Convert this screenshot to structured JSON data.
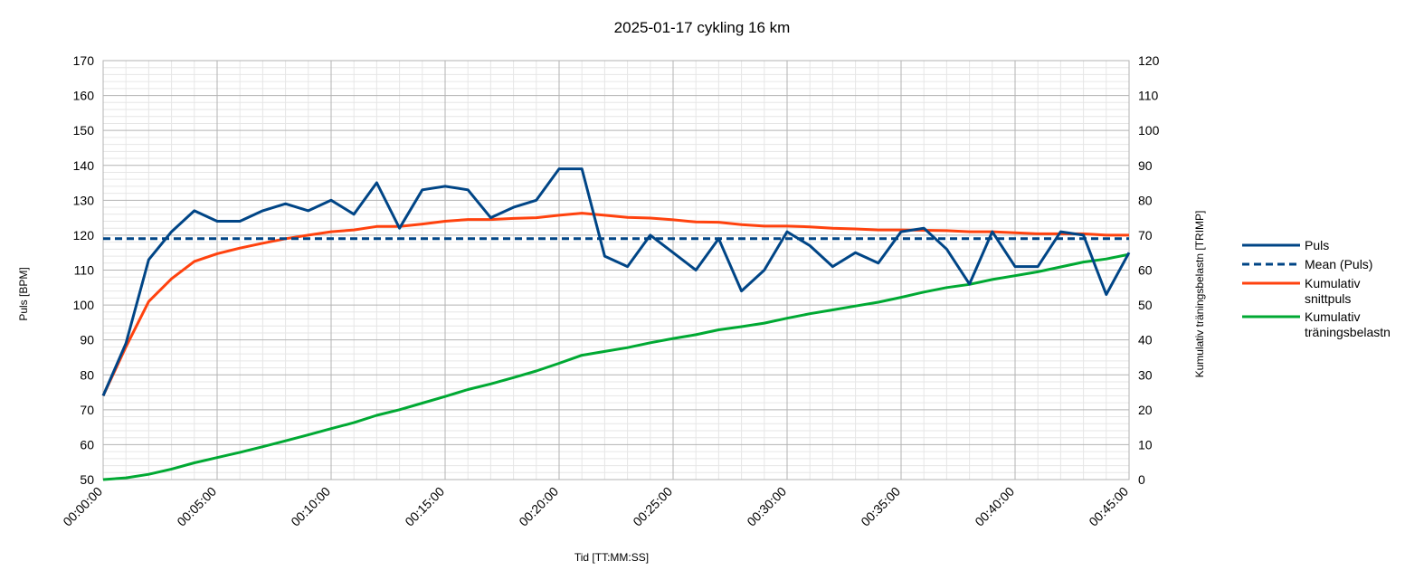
{
  "chart_data": {
    "type": "line",
    "title": "2025-01-17 cykling 16 km",
    "xlabel": "Tid [TT:MM:SS]",
    "ylabel": "Puls [BPM]",
    "y2label": "Kumulativ träningsbelastn [TRIMP]",
    "x_unit": "minutes",
    "xlim": [
      0,
      45
    ],
    "ylim": [
      50,
      170
    ],
    "y2lim": [
      0,
      120
    ],
    "x_ticks": [
      0,
      5,
      10,
      15,
      20,
      25,
      30,
      35,
      40,
      45
    ],
    "x_tick_labels": [
      "00:00:00",
      "00:05:00",
      "00:10:00",
      "00:15:00",
      "00:20:00",
      "00:25:00",
      "00:30:00",
      "00:35:00",
      "00:40:00",
      "00:45:00"
    ],
    "y_ticks": [
      50,
      60,
      70,
      80,
      90,
      100,
      110,
      120,
      130,
      140,
      150,
      160,
      170
    ],
    "y2_ticks": [
      0,
      10,
      20,
      30,
      40,
      50,
      60,
      70,
      80,
      90,
      100,
      110,
      120
    ],
    "grid": true,
    "legend_position": "right",
    "x": [
      0,
      1,
      2,
      3,
      4,
      5,
      6,
      7,
      8,
      9,
      10,
      11,
      12,
      13,
      14,
      15,
      16,
      17,
      18,
      19,
      20,
      21,
      22,
      23,
      24,
      25,
      26,
      27,
      28,
      29,
      30,
      31,
      32,
      33,
      34,
      35,
      36,
      37,
      38,
      39,
      40,
      41,
      42,
      43,
      44,
      45
    ],
    "series": [
      {
        "name": "Puls",
        "axis": "left",
        "color": "#004586",
        "dash": "solid",
        "values": [
          74,
          89,
          113,
          121,
          127,
          124,
          124,
          127,
          129,
          127,
          130,
          126,
          135,
          122,
          133,
          134,
          133,
          125,
          128,
          130,
          139,
          139,
          114,
          111,
          120,
          115,
          110,
          119,
          104,
          110,
          121,
          117,
          111,
          115,
          112,
          121,
          122,
          116,
          106,
          121,
          111,
          111,
          121,
          120,
          103,
          115
        ]
      },
      {
        "name": "Mean (Puls)",
        "axis": "left",
        "color": "#004586",
        "dash": "dashed",
        "values": [
          119,
          119,
          119,
          119,
          119,
          119,
          119,
          119,
          119,
          119,
          119,
          119,
          119,
          119,
          119,
          119,
          119,
          119,
          119,
          119,
          119,
          119,
          119,
          119,
          119,
          119,
          119,
          119,
          119,
          119,
          119,
          119,
          119,
          119,
          119,
          119,
          119,
          119,
          119,
          119,
          119,
          119,
          119,
          119,
          119,
          119
        ]
      },
      {
        "name": "Kumulativ snittpuls",
        "axis": "left",
        "color": "#ff420e",
        "dash": "solid",
        "values": [
          74,
          88,
          101,
          107.5,
          112.5,
          114.7,
          116.3,
          117.7,
          119,
          120,
          121,
          121.5,
          122.5,
          122.5,
          123.2,
          124,
          124.5,
          124.5,
          124.8,
          125,
          125.7,
          126.3,
          125.7,
          125.1,
          124.9,
          124.4,
          123.8,
          123.7,
          123,
          122.6,
          122.6,
          122.4,
          122,
          121.8,
          121.5,
          121.5,
          121.4,
          121.3,
          121,
          121,
          120.7,
          120.4,
          120.4,
          120.4,
          120,
          120
        ]
      },
      {
        "name": "Kumulativ träningsbelastn",
        "axis": "right",
        "color": "#00a933",
        "dash": "solid",
        "values": [
          0,
          0.5,
          1.5,
          3,
          4.8,
          6.3,
          7.8,
          9.4,
          11.1,
          12.8,
          14.6,
          16.3,
          18.4,
          20,
          21.9,
          23.8,
          25.8,
          27.4,
          29.2,
          31.1,
          33.3,
          35.6,
          36.7,
          37.8,
          39.2,
          40.4,
          41.5,
          42.9,
          43.8,
          44.8,
          46.2,
          47.5,
          48.6,
          49.7,
          50.8,
          52.2,
          53.7,
          55,
          55.9,
          57.3,
          58.4,
          59.5,
          60.9,
          62.3,
          63.2,
          64.5
        ]
      }
    ],
    "legend": [
      {
        "lines": [
          "Puls"
        ]
      },
      {
        "lines": [
          "Mean (Puls)"
        ]
      },
      {
        "lines": [
          "Kumulativ",
          "snittpuls"
        ]
      },
      {
        "lines": [
          "Kumulativ",
          "träningsbelastn"
        ]
      }
    ]
  }
}
